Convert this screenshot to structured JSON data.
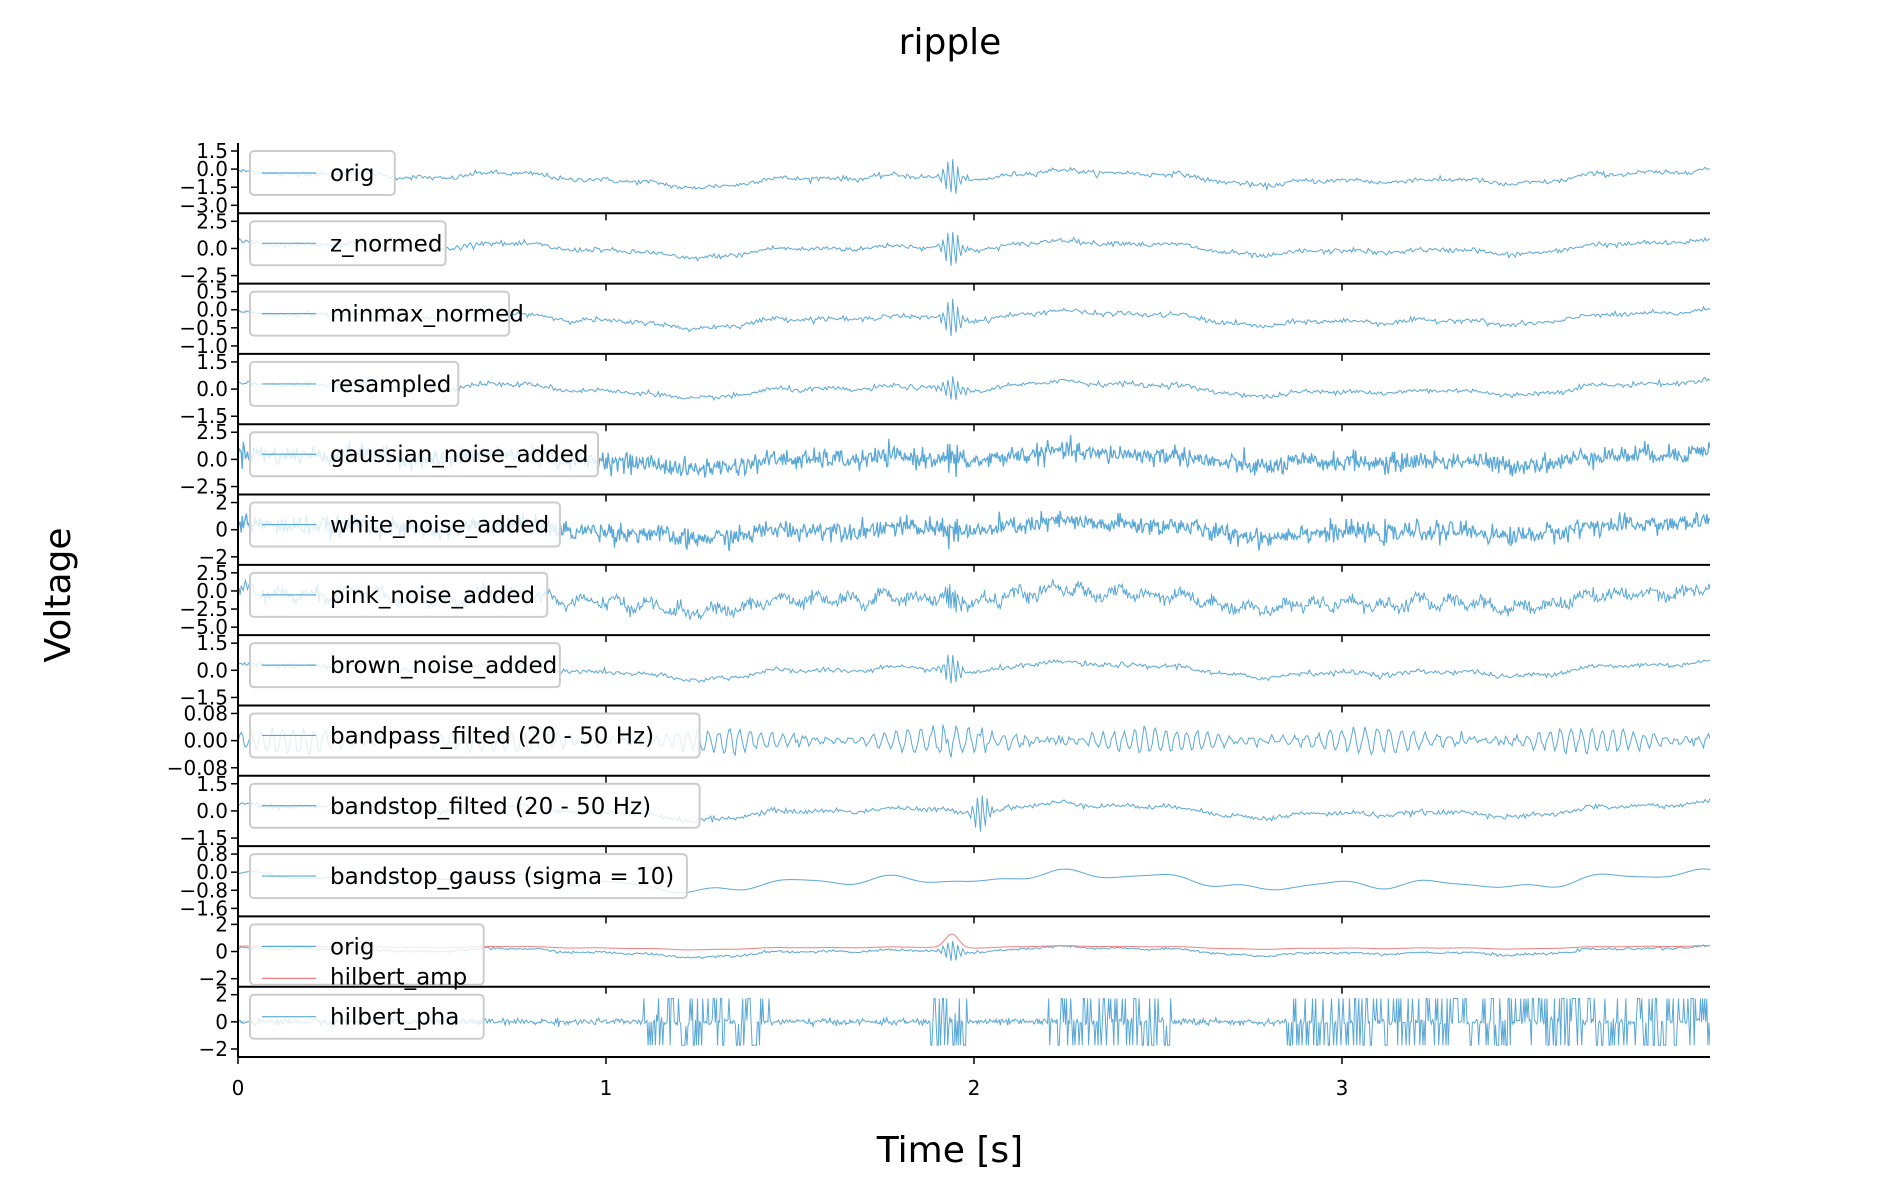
{
  "chart_data": {
    "type": "line",
    "title": "ripple",
    "xlabel": "Time [s]",
    "ylabel": "Voltage",
    "xlim": [
      0,
      4
    ],
    "xticks": [
      0,
      1,
      2,
      3
    ],
    "legend_placement": "upper-left of each panel",
    "colors": {
      "trace": "#5aa8d6",
      "hilbert_amp": "#f08080",
      "axis": "#000000",
      "legend_border": "#cccccc"
    },
    "panels": [
      {
        "label": "orig",
        "ylim": [
          -3.0,
          1.5
        ],
        "yticks": [
          "1.5",
          "0.0",
          "−1.5",
          "−3.0"
        ],
        "pattern": "smooth",
        "ripple_at": 1.94,
        "ripple_amp": 3.0
      },
      {
        "label": "z_normed",
        "ylim": [
          -4.0,
          4.0
        ],
        "yticks": [
          "2.5",
          "0.0",
          "−2.5"
        ],
        "pattern": "smooth",
        "ripple_at": 1.94,
        "ripple_amp": 3.0
      },
      {
        "label": "minmax_normed",
        "ylim": [
          -1.0,
          1.0
        ],
        "yticks": [
          "0.5",
          "0.0",
          "−0.5",
          "−1.0"
        ],
        "pattern": "smooth",
        "ripple_at": 1.94,
        "ripple_amp": 3.0
      },
      {
        "label": "resampled",
        "ylim": [
          -2.5,
          2.5
        ],
        "yticks": [
          "1.5",
          "0.0",
          "−1.5"
        ],
        "pattern": "smooth",
        "ripple_at": 1.94,
        "ripple_amp": 2.0
      },
      {
        "label": "gaussian_noise_added",
        "ylim": [
          -4.5,
          4.5
        ],
        "yticks": [
          "2.5",
          "0.0",
          "−2.5"
        ],
        "pattern": "noisy",
        "ripple_at": 1.94,
        "ripple_amp": 2.0
      },
      {
        "label": "white_noise_added",
        "ylim": [
          -3.5,
          3.5
        ],
        "yticks": [
          "2",
          "0",
          "−2"
        ],
        "pattern": "noisy",
        "ripple_at": 1.94,
        "ripple_amp": 2.0
      },
      {
        "label": "pink_noise_added",
        "ylim": [
          -5.0,
          3.5
        ],
        "yticks": [
          "2.5",
          "0.0",
          "−2.5",
          "−5.0"
        ],
        "pattern": "pink",
        "ripple_at": 1.94,
        "ripple_amp": 2.0
      },
      {
        "label": "brown_noise_added",
        "ylim": [
          -2.5,
          2.5
        ],
        "yticks": [
          "1.5",
          "0.0",
          "−1.5"
        ],
        "pattern": "smooth",
        "ripple_at": 1.94,
        "ripple_amp": 2.5
      },
      {
        "label": "bandpass_filted (20 - 50 Hz)",
        "ylim": [
          -0.12,
          0.12
        ],
        "yticks": [
          "0.08",
          "0.00",
          "−0.08"
        ],
        "pattern": "bandpass",
        "ripple_at": 1.92,
        "ripple_amp": 1.5
      },
      {
        "label": "bandstop_filted (20 - 50 Hz)",
        "ylim": [
          -2.5,
          2.5
        ],
        "yticks": [
          "1.5",
          "0.0",
          "−1.5"
        ],
        "pattern": "smooth",
        "ripple_at": 2.02,
        "ripple_amp": 3.0
      },
      {
        "label": "bandstop_gauss (sigma = 10)",
        "ylim": [
          -1.6,
          1.2
        ],
        "yticks": [
          "0.8",
          "0.0",
          "−0.8",
          "−1.6"
        ],
        "pattern": "gauss",
        "ripple_at": null,
        "ripple_amp": 0
      },
      {
        "label": "orig",
        "label2": "hilbert_amp",
        "ylim": [
          -3.5,
          3.5
        ],
        "yticks": [
          "2",
          "0",
          "−2"
        ],
        "pattern": "hilbert_amp",
        "ripple_at": 1.94,
        "ripple_amp": 3.0
      },
      {
        "label": "hilbert_pha",
        "ylim": [
          -3.5,
          3.5
        ],
        "yticks": [
          "2",
          "0",
          "−2"
        ],
        "pattern": "phase",
        "ripple_at": 1.94,
        "ripple_amp": 2.0
      }
    ]
  }
}
